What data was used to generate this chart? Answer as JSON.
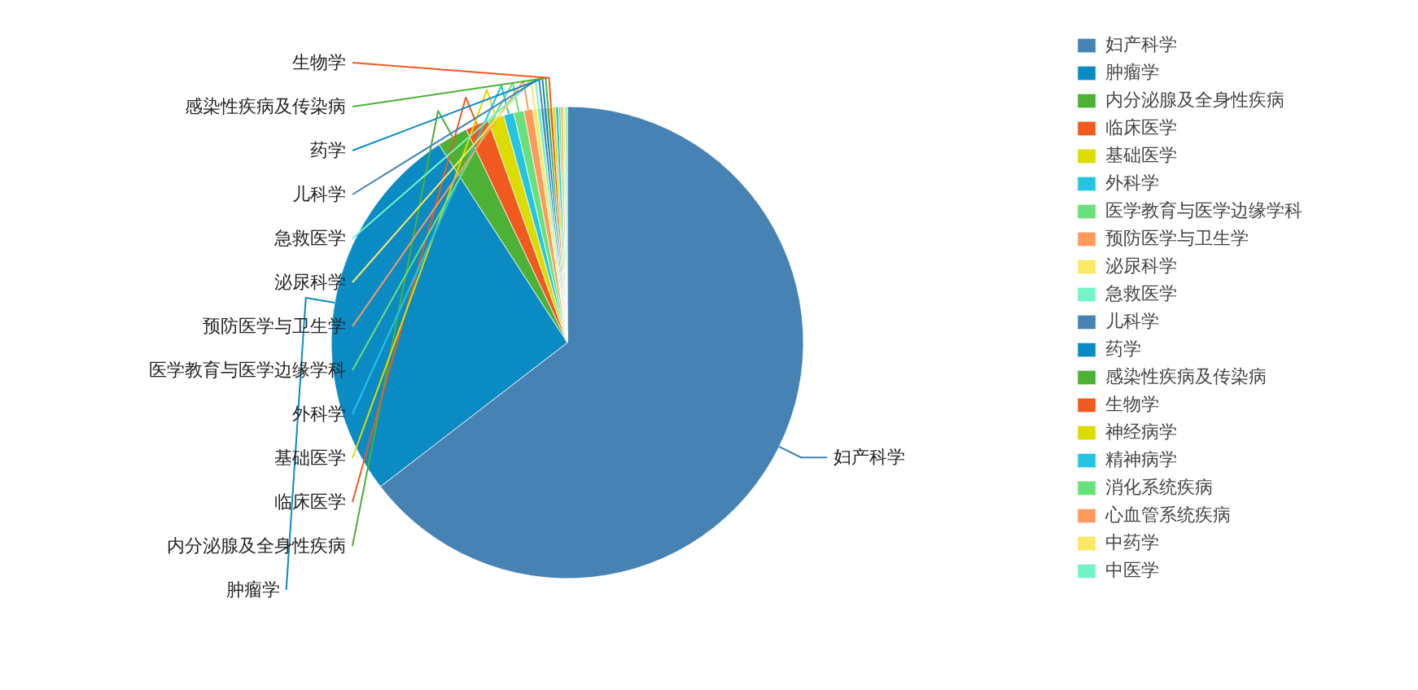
{
  "chart_data": {
    "type": "pie",
    "legend": "top right",
    "categories": [
      "妇产科学",
      "肿瘤学",
      "内分泌腺及全身性疾病",
      "临床医学",
      "基础医学",
      "外科学",
      "医学教育与医学边缘学科",
      "预防医学与卫生学",
      "泌尿科学",
      "急救医学",
      "儿科学",
      "药学",
      "感染性疾病及传染病",
      "生物学",
      "神经病学",
      "精神病学",
      "消化系统疾病",
      "心血管系统疾病",
      "中药学",
      "中医学"
    ],
    "values": [
      64.55,
      26.3,
      2.1,
      1.6,
      1.1,
      0.7,
      0.7,
      0.6,
      0.3,
      0.25,
      0.2,
      0.2,
      0.2,
      0.2,
      0.2,
      0.2,
      0.15,
      0.15,
      0.15,
      0.15
    ],
    "colors": [
      "#4682b4",
      "#0b8bc4",
      "#4cb135",
      "#f05a1e",
      "#dcdc00",
      "#25c4e3",
      "#6ae07a",
      "#ff9a5c",
      "#fbe865",
      "#73f4c5",
      "#4682b4",
      "#0b8bc4",
      "#4cb135",
      "#f05a1e",
      "#dcdc00",
      "#25c4e3",
      "#6ae07a",
      "#ff9a5c",
      "#fbe865",
      "#73f4c5"
    ],
    "annotations": [
      "妇产科学",
      "肿瘤学",
      "内分泌腺及全身性疾病",
      "临床医学",
      "基础医学",
      "外科学",
      "医学教育与医学边缘学科",
      "预防医学与卫生学",
      "泌尿科学",
      "急救医学",
      "儿科学",
      "药学",
      "感染性疾病及传染病",
      "生物学"
    ]
  }
}
